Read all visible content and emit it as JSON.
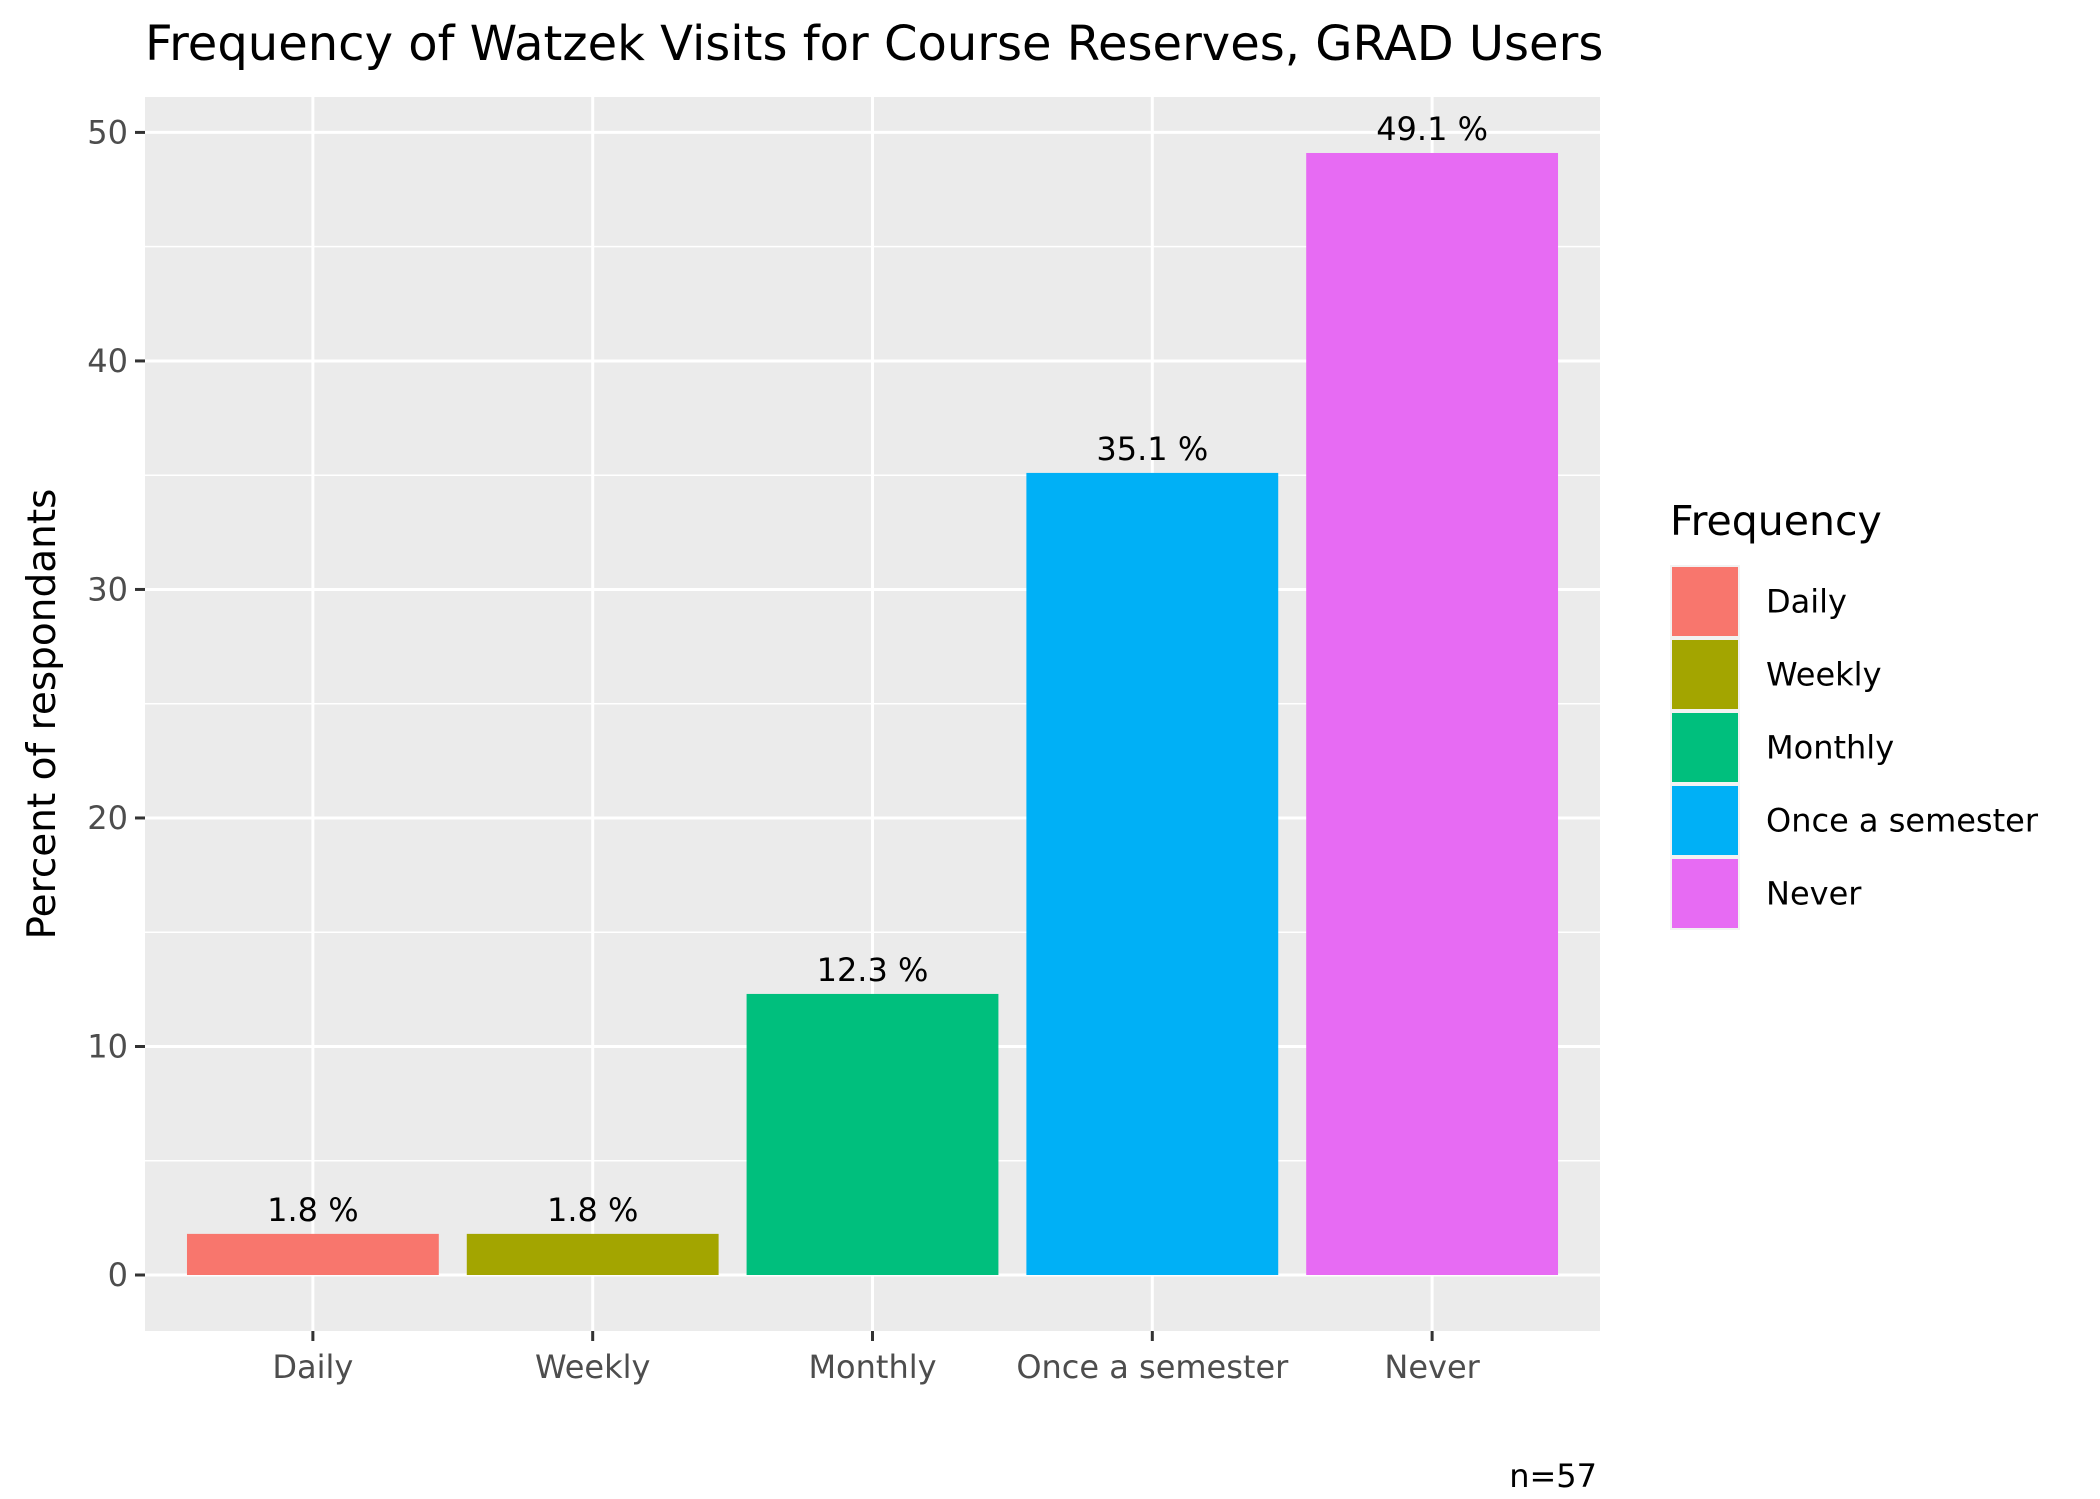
{
  "chart_data": {
    "type": "bar",
    "title": "Frequency of Watzek Visits for Course Reserves, GRAD Users",
    "xlabel": "",
    "ylabel": "Percent of respondants",
    "categories": [
      "Daily",
      "Weekly",
      "Monthly",
      "Once a semester",
      "Never"
    ],
    "values": [
      1.8,
      1.8,
      12.3,
      35.1,
      49.1
    ],
    "data_labels": [
      "1.8 %",
      "1.8 %",
      "12.3 %",
      "35.1 %",
      "49.1 %"
    ],
    "colors": [
      "#F8766D",
      "#A3A500",
      "#00BF7D",
      "#00B0F6",
      "#E76BF3"
    ],
    "ylim": [
      -2.45,
      51.55
    ],
    "yticks": [
      0,
      10,
      20,
      30,
      40,
      50
    ],
    "ytick_labels": [
      "0",
      "10",
      "20",
      "30",
      "40",
      "50"
    ],
    "grid": true,
    "panel_background": "#EBEBEB",
    "legend": {
      "title": "Frequency",
      "placement": "right",
      "items": [
        "Daily",
        "Weekly",
        "Monthly",
        "Once a semester",
        "Never"
      ]
    },
    "caption": "n=57"
  }
}
